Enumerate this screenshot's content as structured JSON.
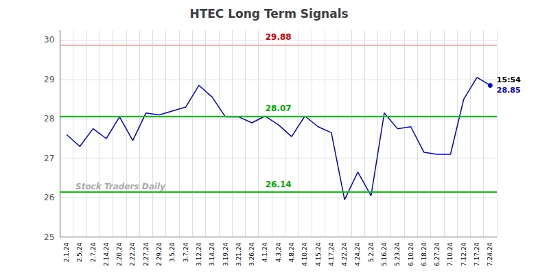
{
  "chart_data": {
    "type": "line",
    "title": "HTEC Long Term Signals",
    "categories": [
      "2.1.24",
      "2.5.24",
      "2.7.24",
      "2.14.24",
      "2.20.24",
      "2.22.24",
      "2.27.24",
      "2.29.24",
      "3.5.24",
      "3.7.24",
      "3.12.24",
      "3.14.24",
      "3.19.24",
      "3.21.24",
      "3.26.24",
      "4.1.24",
      "4.3.24",
      "4.8.24",
      "4.10.24",
      "4.15.24",
      "4.17.24",
      "4.22.24",
      "4.24.24",
      "5.2.24",
      "5.16.24",
      "5.23.24",
      "6.10.24",
      "6.18.24",
      "6.27.24",
      "7.10.24",
      "7.12.24",
      "7.17.24",
      "7.24.24"
    ],
    "values": [
      27.6,
      27.3,
      27.75,
      27.5,
      28.05,
      27.45,
      28.15,
      28.1,
      28.2,
      28.3,
      28.85,
      28.55,
      28.05,
      28.05,
      27.9,
      28.07,
      27.85,
      27.55,
      28.07,
      27.8,
      27.65,
      25.95,
      26.65,
      26.05,
      28.15,
      27.75,
      27.8,
      27.15,
      27.1,
      27.1,
      28.5,
      29.05,
      28.85
    ],
    "color": "#0000cc",
    "ylim": [
      25.0,
      30.25
    ],
    "yticks": [
      25,
      26,
      27,
      28,
      29,
      30
    ],
    "grid": true,
    "reference_lines": [
      {
        "value": 29.88,
        "label": "29.88",
        "color": "#ffb0b0",
        "label_color": "#cc0000"
      },
      {
        "value": 28.07,
        "label": "28.07",
        "color": "#00cc00",
        "label_color": "#00aa00"
      },
      {
        "value": 26.14,
        "label": "26.14",
        "color": "#00cc00",
        "label_color": "#00aa00"
      }
    ],
    "last_point": {
      "time": "15:54",
      "price": 28.85,
      "color": "#0000cc"
    },
    "watermark": {
      "text": "Stock Traders Daily",
      "color": "#aaaaaa"
    }
  }
}
